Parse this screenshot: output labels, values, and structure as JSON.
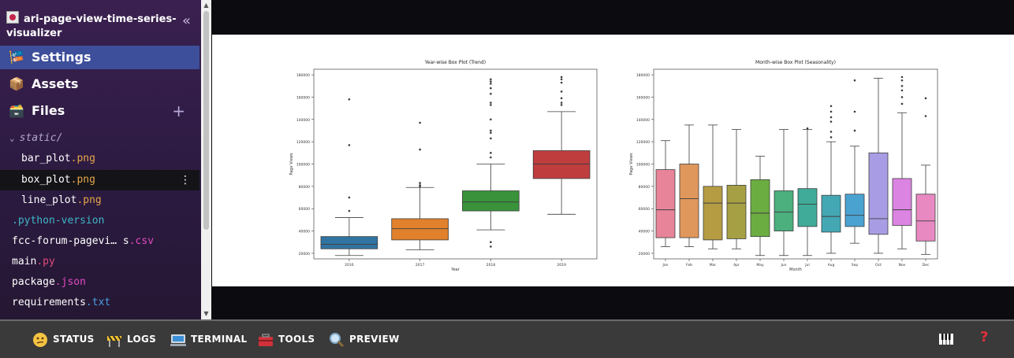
{
  "project": {
    "title": "ari-page-view-time-series-visualizer"
  },
  "nav": {
    "settings": "Settings",
    "assets": "Assets",
    "files": "Files"
  },
  "files": {
    "folder": "static/",
    "items": [
      {
        "base": "bar_plot",
        "ext": ".png"
      },
      {
        "base": "box_plot",
        "ext": ".png"
      },
      {
        "base": "line_plot",
        "ext": ".png"
      }
    ],
    "root": [
      {
        "base": "",
        "ext": ".python-version"
      },
      {
        "base": "fcc-forum-pagevi… s",
        "ext": ".csv"
      },
      {
        "base": "main",
        "ext": ".py"
      },
      {
        "base": "package",
        "ext": ".json"
      },
      {
        "base": "requirements",
        "ext": ".txt"
      }
    ]
  },
  "bottombar": {
    "status": "STATUS",
    "logs": "LOGS",
    "terminal": "TERMINAL",
    "tools": "TOOLS",
    "preview": "PREVIEW",
    "help": "?"
  },
  "chart_data": [
    {
      "type": "box",
      "title": "Year-wise Box Plot (Trend)",
      "xlabel": "Year",
      "ylabel": "Page Views",
      "ylim": [
        15000,
        185000
      ],
      "yticks": [
        20000,
        40000,
        60000,
        80000,
        100000,
        120000,
        140000,
        160000,
        180000
      ],
      "categories": [
        "2016",
        "2017",
        "2018",
        "2019"
      ],
      "colors": [
        "#3274a1",
        "#e1812c",
        "#3a923a",
        "#c03d3e"
      ],
      "boxes": [
        {
          "low": 18000,
          "q1": 24000,
          "median": 28000,
          "q3": 35000,
          "high": 52000,
          "outliers": [
            158000,
            117000,
            70000,
            58000
          ]
        },
        {
          "low": 23000,
          "q1": 32000,
          "median": 42000,
          "q3": 51000,
          "high": 79000,
          "outliers": [
            137000,
            113000,
            83000,
            81000,
            80000
          ]
        },
        {
          "low": 41000,
          "q1": 58000,
          "median": 66000,
          "q3": 76000,
          "high": 100000,
          "outliers": [
            176000,
            174000,
            172000,
            168000,
            163000,
            155000,
            153000,
            140000,
            130000,
            128000,
            123000,
            110000,
            106000,
            30000,
            26000
          ]
        },
        {
          "low": 55000,
          "q1": 87000,
          "median": 100000,
          "q3": 112000,
          "high": 147000,
          "outliers": [
            178000,
            176000,
            173000,
            165000,
            159000,
            155000,
            153000
          ]
        }
      ]
    },
    {
      "type": "box",
      "title": "Month-wise Box Plot (Seasonality)",
      "xlabel": "Month",
      "ylabel": "Page Views",
      "ylim": [
        15000,
        185000
      ],
      "yticks": [
        20000,
        40000,
        60000,
        80000,
        100000,
        120000,
        140000,
        160000,
        180000
      ],
      "categories": [
        "Jan",
        "Feb",
        "Mar",
        "Apr",
        "May",
        "Jun",
        "Jul",
        "Aug",
        "Sep",
        "Oct",
        "Nov",
        "Dec"
      ],
      "colors": [
        "#e8849a",
        "#e0975c",
        "#b59c43",
        "#a6a044",
        "#6cad41",
        "#4baf7e",
        "#40ab98",
        "#44a8b4",
        "#4aa2d1",
        "#a89de4",
        "#dc84e2",
        "#e889c2"
      ],
      "boxes": [
        {
          "low": 26000,
          "q1": 34000,
          "median": 59000,
          "q3": 95000,
          "high": 121000,
          "outliers": []
        },
        {
          "low": 26000,
          "q1": 34000,
          "median": 69000,
          "q3": 100000,
          "high": 135000,
          "outliers": []
        },
        {
          "low": 24000,
          "q1": 32000,
          "median": 65000,
          "q3": 80000,
          "high": 135000,
          "outliers": []
        },
        {
          "low": 24000,
          "q1": 33000,
          "median": 65000,
          "q3": 81000,
          "high": 131000,
          "outliers": []
        },
        {
          "low": 18000,
          "q1": 35000,
          "median": 56000,
          "q3": 86000,
          "high": 107000,
          "outliers": []
        },
        {
          "low": 18000,
          "q1": 40000,
          "median": 57000,
          "q3": 76000,
          "high": 131000,
          "outliers": []
        },
        {
          "low": 18000,
          "q1": 44000,
          "median": 64000,
          "q3": 78000,
          "high": 131000,
          "outliers": [
            132000
          ]
        },
        {
          "low": 20000,
          "q1": 39000,
          "median": 53000,
          "q3": 72000,
          "high": 120000,
          "outliers": [
            152000,
            147000,
            142000,
            138000,
            129000,
            124000
          ]
        },
        {
          "low": 29000,
          "q1": 44000,
          "median": 54000,
          "q3": 73000,
          "high": 116000,
          "outliers": [
            175000,
            147000,
            130000
          ]
        },
        {
          "low": 20000,
          "q1": 37000,
          "median": 51000,
          "q3": 110000,
          "high": 177000,
          "outliers": []
        },
        {
          "low": 24000,
          "q1": 45000,
          "median": 59000,
          "q3": 87000,
          "high": 146000,
          "outliers": [
            178000,
            175000,
            170000,
            166000,
            160000,
            154000
          ]
        },
        {
          "low": 19000,
          "q1": 31000,
          "median": 49000,
          "q3": 73000,
          "high": 99000,
          "outliers": [
            159000,
            143000
          ]
        }
      ]
    }
  ]
}
